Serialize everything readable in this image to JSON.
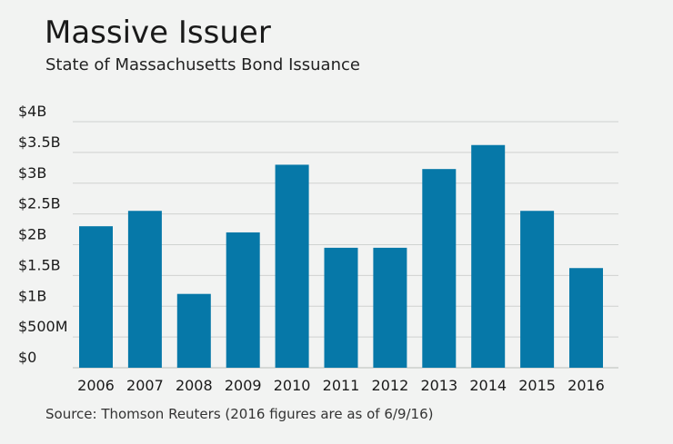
{
  "header": {
    "title": "Massive Issuer",
    "subtitle": "State of Massachusetts Bond Issuance"
  },
  "footer": {
    "source": "Source: Thomson Reuters (2016 figures are as of 6/9/16)"
  },
  "colors": {
    "bar": "#0678a8",
    "grid": "#cfd2d0",
    "background": "#f2f3f2"
  },
  "chart_data": {
    "type": "bar",
    "title": "Massive Issuer",
    "subtitle": "State of Massachusetts Bond Issuance",
    "xlabel": "",
    "ylabel": "",
    "unit": "billions of dollars",
    "ylim": [
      0,
      4
    ],
    "yticks": [
      0,
      0.5,
      1,
      1.5,
      2,
      2.5,
      3,
      3.5,
      4
    ],
    "ytick_labels": [
      "$0",
      "$500M",
      "$1B",
      "$1.5B",
      "$2B",
      "$2.5B",
      "$3B",
      "$3.5B",
      "$4B"
    ],
    "grid": true,
    "legend": "none",
    "categories": [
      "2006",
      "2007",
      "2008",
      "2009",
      "2010",
      "2011",
      "2012",
      "2013",
      "2014",
      "2015",
      "2016"
    ],
    "values": [
      2.3,
      2.55,
      1.2,
      2.2,
      3.3,
      1.95,
      1.95,
      3.23,
      3.62,
      2.55,
      1.62
    ]
  }
}
